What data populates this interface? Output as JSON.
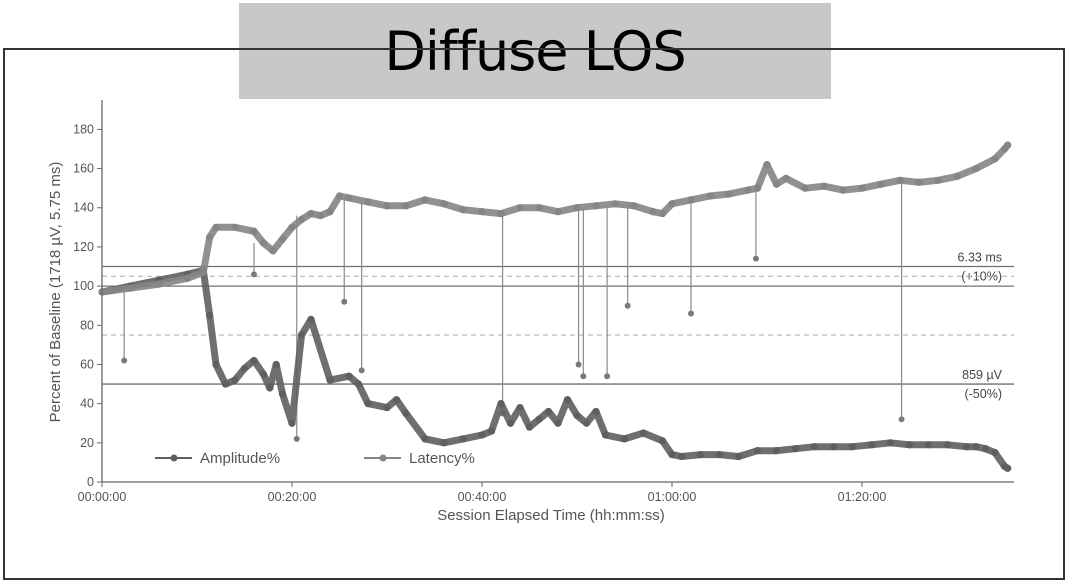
{
  "title": "Diffuse LOS",
  "colors": {
    "amplitude": "#5f5f5f",
    "latency": "#858585",
    "axis": "#666666",
    "reference": "#707070",
    "dashed": "#b4b4b4"
  },
  "chart_data": {
    "type": "line",
    "title": "Diffuse LOS",
    "xlabel": "Session Elapsed Time (hh:mm:ss)",
    "ylabel": "Percent of Baseline (1718 µV, 5.75 ms)",
    "xlim": [
      0,
      5760
    ],
    "ylim": [
      0,
      195
    ],
    "x_ticks": [
      {
        "value": 0,
        "label": "00:00:00"
      },
      {
        "value": 1200,
        "label": "00:20:00"
      },
      {
        "value": 2400,
        "label": "00:40:00"
      },
      {
        "value": 3600,
        "label": "01:00:00"
      },
      {
        "value": 4800,
        "label": "01:20:00"
      }
    ],
    "y_ticks": [
      0,
      20,
      40,
      60,
      80,
      100,
      120,
      140,
      160,
      180
    ],
    "reference_lines": [
      {
        "y": 110,
        "style": "solid",
        "label": "6.33 ms",
        "sublabel": "(+10%)"
      },
      {
        "y": 105,
        "style": "dashed"
      },
      {
        "y": 100,
        "style": "solid"
      },
      {
        "y": 75,
        "style": "dashed"
      },
      {
        "y": 50,
        "style": "solid",
        "label": "859 µV",
        "sublabel": "(-50%)"
      }
    ],
    "legend_position": "bottom-left",
    "series": [
      {
        "name": "Amplitude%",
        "x": [
          0,
          180,
          360,
          540,
          640,
          680,
          720,
          780,
          840,
          900,
          960,
          1020,
          1060,
          1100,
          1140,
          1200,
          1260,
          1320,
          1440,
          1560,
          1620,
          1680,
          1800,
          1860,
          1920,
          2040,
          2160,
          2280,
          2400,
          2460,
          2520,
          2580,
          2640,
          2700,
          2760,
          2820,
          2880,
          2940,
          3000,
          3060,
          3120,
          3180,
          3300,
          3420,
          3540,
          3600,
          3660,
          3780,
          3900,
          4020,
          4140,
          4260,
          4380,
          4500,
          4620,
          4740,
          4860,
          4980,
          5100,
          5220,
          5340,
          5460,
          5520,
          5580,
          5640,
          5700,
          5720
        ],
        "y": [
          97,
          100,
          103,
          106,
          108,
          85,
          60,
          50,
          52,
          58,
          62,
          55,
          48,
          60,
          45,
          30,
          75,
          83,
          52,
          54,
          50,
          40,
          38,
          42,
          35,
          22,
          20,
          22,
          24,
          26,
          40,
          30,
          38,
          28,
          32,
          36,
          30,
          42,
          34,
          30,
          36,
          24,
          22,
          25,
          21,
          14,
          13,
          14,
          14,
          13,
          16,
          16,
          17,
          18,
          18,
          18,
          19,
          20,
          19,
          19,
          19,
          18,
          18,
          17,
          15,
          8,
          7
        ]
      },
      {
        "name": "Latency%",
        "x": [
          0,
          180,
          360,
          540,
          640,
          680,
          720,
          840,
          960,
          1020,
          1080,
          1140,
          1200,
          1260,
          1320,
          1380,
          1440,
          1500,
          1560,
          1680,
          1800,
          1920,
          2040,
          2160,
          2280,
          2400,
          2520,
          2640,
          2760,
          2880,
          3000,
          3120,
          3240,
          3360,
          3480,
          3540,
          3600,
          3720,
          3840,
          3960,
          4080,
          4140,
          4200,
          4260,
          4320,
          4440,
          4560,
          4680,
          4800,
          4920,
          5040,
          5160,
          5280,
          5400,
          5520,
          5640,
          5700,
          5720
        ],
        "y": [
          97,
          99,
          101,
          104,
          107,
          125,
          130,
          130,
          128,
          122,
          118,
          124,
          130,
          134,
          137,
          136,
          138,
          146,
          145,
          143,
          141,
          141,
          144,
          142,
          139,
          138,
          137,
          140,
          140,
          138,
          140,
          141,
          142,
          141,
          138,
          137,
          142,
          144,
          146,
          147,
          149,
          150,
          162,
          152,
          155,
          150,
          151,
          149,
          150,
          152,
          154,
          153,
          154,
          156,
          160,
          165,
          170,
          172
        ]
      }
    ],
    "spikes": [
      {
        "x": 140,
        "y_from": 100,
        "y_to": 62
      },
      {
        "x": 960,
        "y_from": 122,
        "y_to": 106
      },
      {
        "x": 1230,
        "y_from": 136,
        "y_to": 22
      },
      {
        "x": 1530,
        "y_from": 145,
        "y_to": 92
      },
      {
        "x": 1640,
        "y_from": 143,
        "y_to": 57
      },
      {
        "x": 2530,
        "y_from": 137,
        "y_to": 35
      },
      {
        "x": 3010,
        "y_from": 140,
        "y_to": 60
      },
      {
        "x": 3040,
        "y_from": 140,
        "y_to": 54
      },
      {
        "x": 3190,
        "y_from": 141,
        "y_to": 54
      },
      {
        "x": 3320,
        "y_from": 141,
        "y_to": 90
      },
      {
        "x": 3720,
        "y_from": 144,
        "y_to": 86
      },
      {
        "x": 4130,
        "y_from": 149,
        "y_to": 114
      },
      {
        "x": 5050,
        "y_from": 153,
        "y_to": 32
      }
    ]
  }
}
